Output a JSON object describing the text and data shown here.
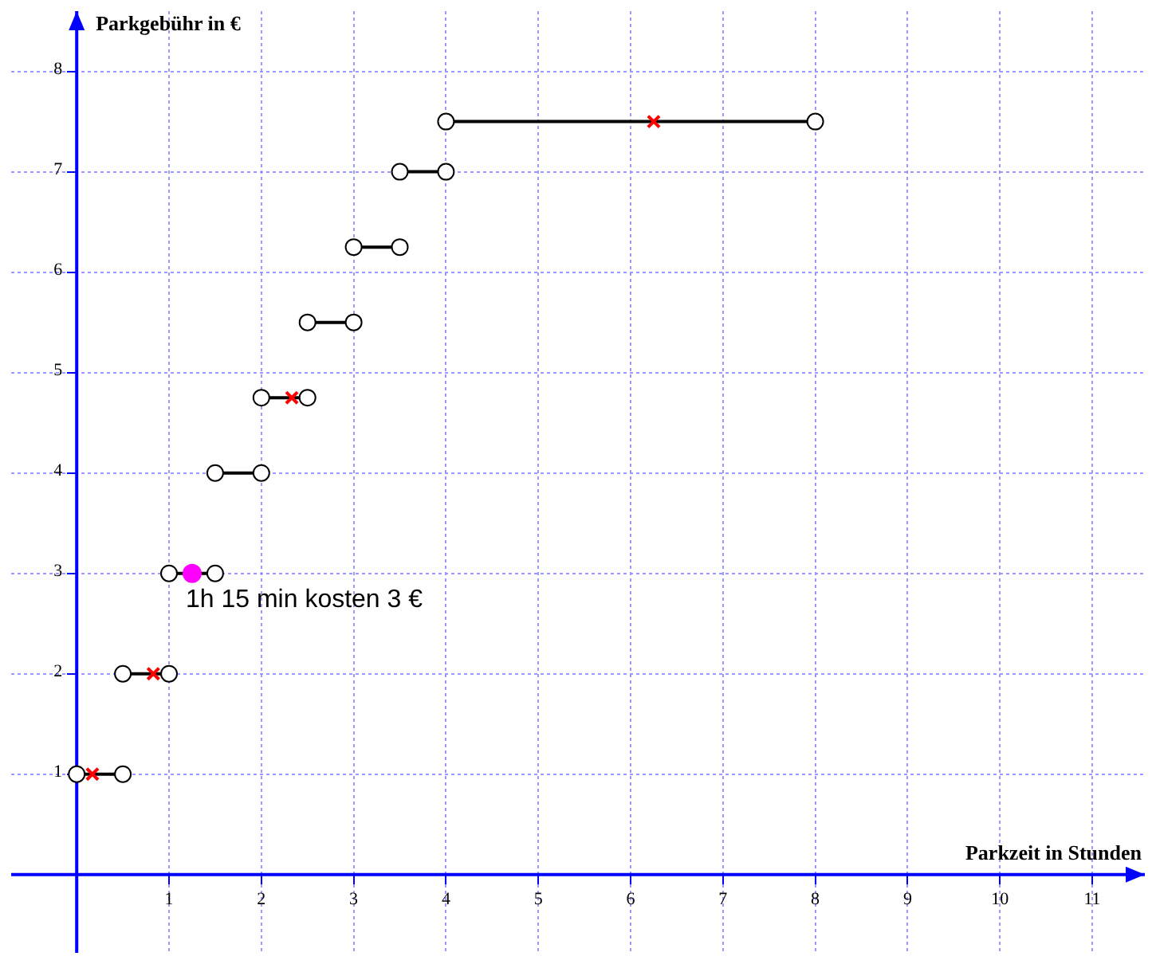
{
  "chart_data": {
    "type": "line",
    "xlabel": "Parkzeit in Stunden",
    "ylabel": "Parkgebühr in €",
    "xlim": [
      -0.71,
      11.57
    ],
    "ylim": [
      -0.78,
      8.6
    ],
    "xticks": [
      1,
      2,
      3,
      4,
      5,
      6,
      7,
      8,
      9,
      10,
      11
    ],
    "yticks": [
      1,
      2,
      3,
      4,
      5,
      6,
      7,
      8
    ],
    "grid": true,
    "legend": false,
    "line_style": "solid",
    "series": [
      {
        "type": "line",
        "color": "#000000",
        "marker": "circle",
        "x": [
          0,
          0.5
        ],
        "values": [
          1,
          1
        ]
      },
      {
        "type": "line",
        "color": "#000000",
        "marker": "circle",
        "x": [
          0.5,
          1
        ],
        "values": [
          2,
          2
        ]
      },
      {
        "type": "line",
        "color": "#000000",
        "marker": "circle",
        "x": [
          1,
          1.5
        ],
        "values": [
          3,
          3
        ]
      },
      {
        "type": "line",
        "color": "#000000",
        "marker": "circle",
        "x": [
          1.5,
          2
        ],
        "values": [
          4,
          4
        ]
      },
      {
        "type": "line",
        "color": "#000000",
        "marker": "circle",
        "x": [
          2,
          2.5
        ],
        "values": [
          4.75,
          4.75
        ]
      },
      {
        "type": "line",
        "color": "#000000",
        "marker": "circle",
        "x": [
          2.5,
          3
        ],
        "values": [
          5.5,
          5.5
        ]
      },
      {
        "type": "line",
        "color": "#000000",
        "marker": "circle",
        "x": [
          3,
          3.5
        ],
        "values": [
          6.25,
          6.25
        ]
      },
      {
        "type": "line",
        "color": "#000000",
        "marker": "circle",
        "x": [
          3.5,
          4
        ],
        "values": [
          7,
          7
        ]
      },
      {
        "type": "line",
        "color": "#000000",
        "marker": "circle",
        "x": [
          4,
          8
        ],
        "values": [
          7.5,
          7.5
        ]
      },
      {
        "type": "scatter",
        "color": "#ff0000",
        "marker": "cross",
        "x": [
          0.17,
          0.83,
          2.33,
          6.25
        ],
        "values": [
          1,
          2,
          4.75,
          7.5
        ]
      },
      {
        "type": "scatter",
        "color": "#ff00ff",
        "marker": "circle",
        "x": [
          1.25
        ],
        "values": [
          3
        ]
      }
    ],
    "annotations": [
      {
        "text": "1h 15 min kosten 3 €",
        "x": 1.25,
        "y": 3
      }
    ]
  }
}
